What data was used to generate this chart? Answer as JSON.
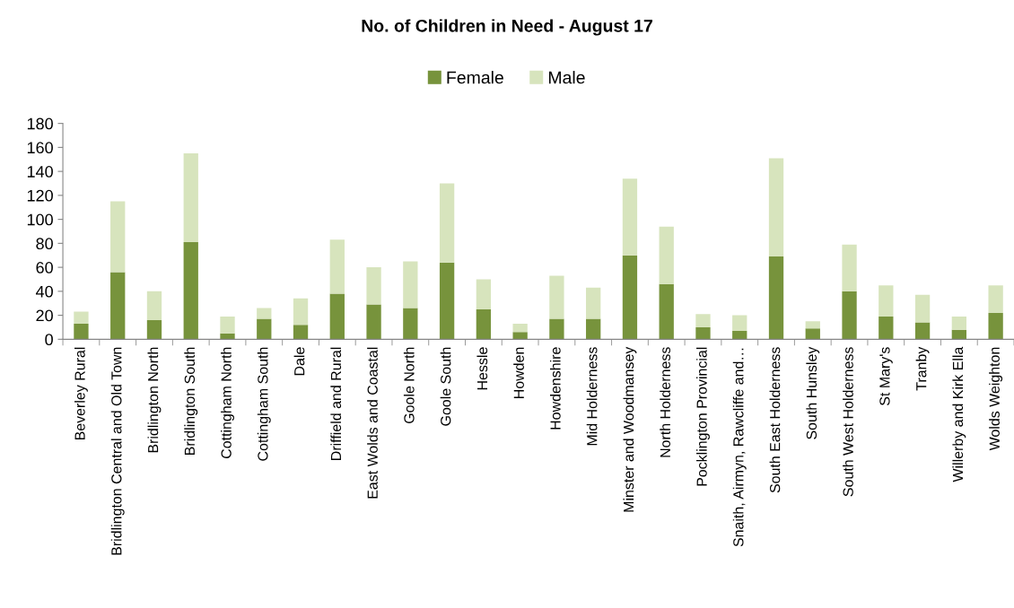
{
  "chart_data": {
    "type": "bar",
    "title": "No. of Children in Need - August 17",
    "stacked": true,
    "legend": "top",
    "grid": false,
    "categories": [
      "Beverley Rural",
      "Bridlington Central and Old Town",
      "Bridlington North",
      "Bridlington South",
      "Cottingham North",
      "Cottingham South",
      "Dale",
      "Driffield and Rural",
      "East Wolds and Coastal",
      "Goole North",
      "Goole South",
      "Hessle",
      "Howden",
      "Howdenshire",
      "Mid Holderness",
      "Minster and Woodmansey",
      "North Holderness",
      "Pocklington Provincial",
      "Snaith, Airmyn, Rawcliffe and…",
      "South East Holderness",
      "South Hunsley",
      "South West Holderness",
      "St Mary's",
      "Tranby",
      "Willerby and Kirk Ella",
      "Wolds Weighton"
    ],
    "series": [
      {
        "name": "Female",
        "color": "#77933c",
        "values": [
          13,
          56,
          16,
          81,
          5,
          17,
          12,
          38,
          29,
          26,
          64,
          25,
          6,
          17,
          17,
          70,
          46,
          10,
          7,
          69,
          9,
          40,
          19,
          14,
          8,
          22
        ]
      },
      {
        "name": "Male",
        "color": "#d7e4bd",
        "values": [
          10,
          59,
          24,
          74,
          14,
          9,
          22,
          45,
          31,
          39,
          66,
          25,
          7,
          36,
          26,
          64,
          48,
          11,
          13,
          82,
          6,
          39,
          26,
          23,
          11,
          23
        ]
      }
    ],
    "ylim": [
      0,
      180
    ],
    "yticks": [
      0,
      20,
      40,
      60,
      80,
      100,
      120,
      140,
      160,
      180
    ]
  }
}
